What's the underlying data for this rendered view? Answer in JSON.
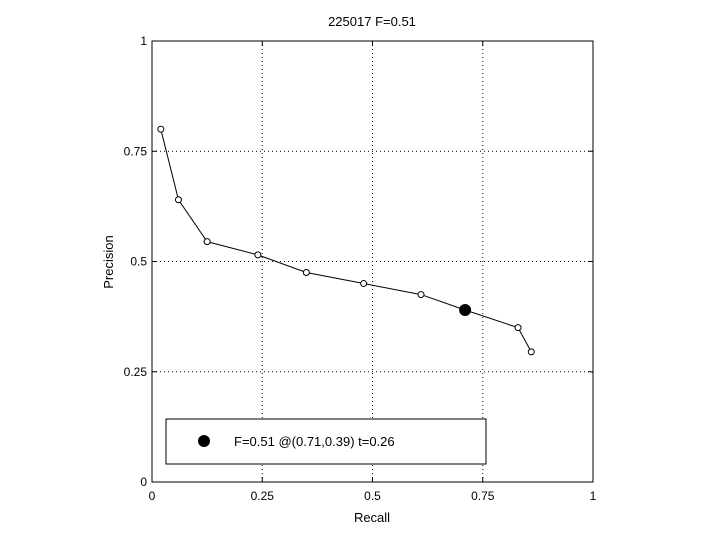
{
  "chart_data": {
    "type": "line",
    "title": "225017 F=0.51",
    "xlabel": "Recall",
    "ylabel": "Precision",
    "xlim": [
      0,
      1
    ],
    "ylim": [
      0,
      1
    ],
    "xticks": [
      0,
      0.25,
      0.5,
      0.75,
      1
    ],
    "yticks": [
      0,
      0.25,
      0.5,
      0.75,
      1
    ],
    "xtick_labels": [
      "0",
      "0.25",
      "0.5",
      "0.75",
      "1"
    ],
    "ytick_labels": [
      "0",
      "0.25",
      "0.5",
      "0.75",
      "1"
    ],
    "grid": true,
    "series": [
      {
        "x": [
          0.02,
          0.06,
          0.125,
          0.24,
          0.35,
          0.48,
          0.61,
          0.71,
          0.83,
          0.86
        ],
        "y": [
          0.8,
          0.64,
          0.545,
          0.515,
          0.475,
          0.45,
          0.425,
          0.39,
          0.35,
          0.295
        ]
      }
    ],
    "highlight_point": {
      "x": 0.71,
      "y": 0.39
    },
    "legend": {
      "position": "bottom-left",
      "text": "F=0.51 @(0.71,0.39) t=0.26"
    }
  }
}
